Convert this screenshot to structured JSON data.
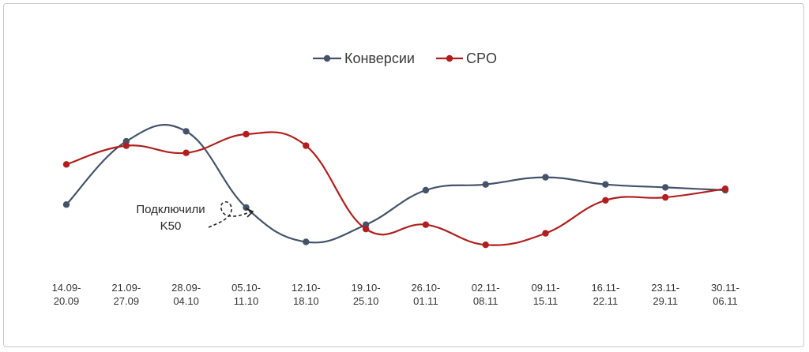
{
  "colors": {
    "conversions": "#44536a",
    "cpo": "#b01e1e",
    "text": "#333333",
    "border": "#c9c9c9"
  },
  "annotation": {
    "line1": "Подключили",
    "line2": "K50",
    "icon": "dashed-curly-arrow-icon"
  },
  "chart_data": {
    "type": "line",
    "categories": [
      [
        "14.09-",
        "20.09"
      ],
      [
        "21.09-",
        "27.09"
      ],
      [
        "28.09-",
        "04.10"
      ],
      [
        "05.10-",
        "11.10"
      ],
      [
        "12.10-",
        "18.10"
      ],
      [
        "19.10-",
        "25.10"
      ],
      [
        "26.10-",
        "01.11"
      ],
      [
        "02.11-",
        "08.11"
      ],
      [
        "09.11-",
        "15.11"
      ],
      [
        "16.11-",
        "22.11"
      ],
      [
        "23.11-",
        "29.11"
      ],
      [
        "30.11-",
        "06.11"
      ]
    ],
    "series": [
      {
        "name": "Конверсии",
        "color": "#44536a",
        "values": [
          0.29,
          0.73,
          0.8,
          0.27,
          0.03,
          0.15,
          0.39,
          0.43,
          0.48,
          0.43,
          0.41,
          0.39
        ]
      },
      {
        "name": "CPO",
        "color": "#b01e1e",
        "values": [
          0.57,
          0.7,
          0.65,
          0.78,
          0.7,
          0.12,
          0.15,
          0.01,
          0.09,
          0.32,
          0.34,
          0.4
        ]
      }
    ],
    "ylim": [
      0,
      1
    ],
    "y_axis_visible": false,
    "grid": false,
    "legend": "top-center",
    "smooth": true,
    "title": "",
    "xlabel": "",
    "ylabel": ""
  }
}
